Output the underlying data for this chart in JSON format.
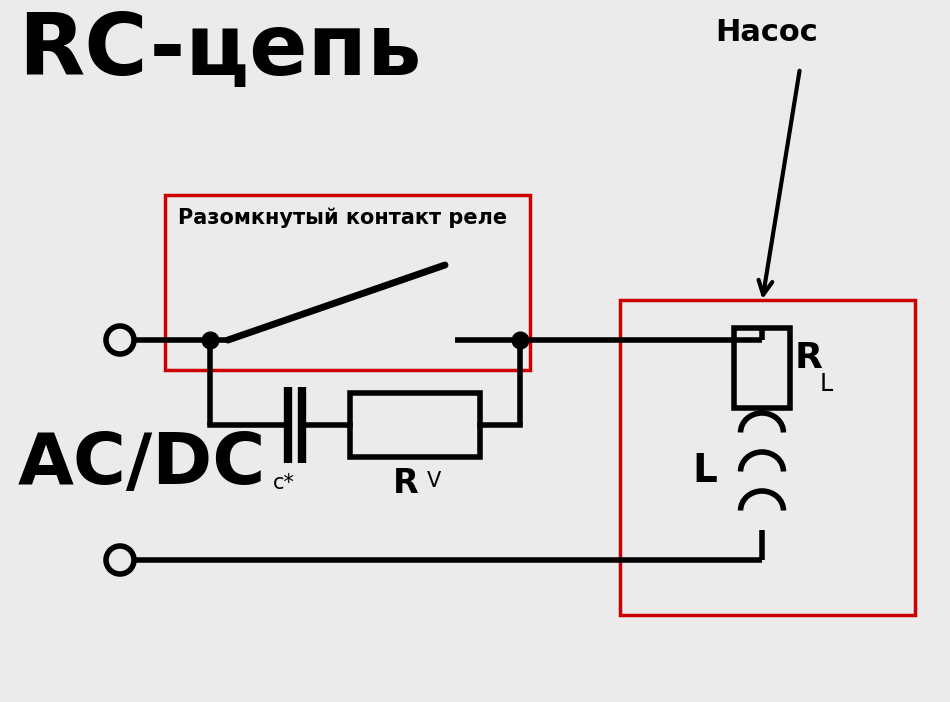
{
  "bg_color": "#ebebeb",
  "line_color": "#000000",
  "red_color": "#cc0000",
  "title": "RC-цепь",
  "label_acdc": "AC/DC",
  "label_relay": "Разомкнутый контакт реле",
  "label_nasoc": "Насос",
  "label_c": "c*",
  "label_rv": "R",
  "label_rv_sub": "V",
  "label_rl": "R",
  "label_rl_sub": "L",
  "label_l": "L",
  "line_width": 4.0
}
